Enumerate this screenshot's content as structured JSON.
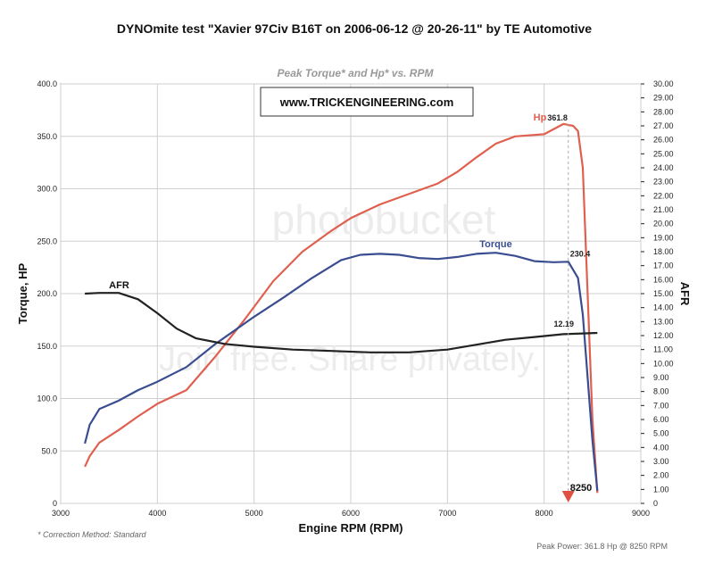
{
  "chart_data": {
    "type": "line",
    "title": "DYNOmite test \"Xavier 97Civ B16T on 2006-06-12 @ 20-26-11\" by TE Automotive",
    "subtitle": "Peak Torque* and Hp* vs. RPM",
    "banner": "www.TRICKENGINEERING.com",
    "xlabel": "Engine RPM (RPM)",
    "ylabel": "Torque, HP",
    "y2label": "AFR",
    "xlim": [
      3000,
      9000
    ],
    "ylim": [
      0,
      400
    ],
    "y2lim": [
      0,
      30
    ],
    "x_ticks": [
      "3000",
      "4000",
      "5000",
      "6000",
      "7000",
      "8000",
      "9000"
    ],
    "y_ticks": [
      "0",
      "50.0",
      "100.0",
      "150.0",
      "200.0",
      "250.0",
      "300.0",
      "350.0",
      "400.0"
    ],
    "y2_ticks": [
      "0",
      "1.00",
      "2.00",
      "3.00",
      "4.00",
      "5.00",
      "6.00",
      "7.00",
      "8.00",
      "9.00",
      "10.00",
      "11.00",
      "12.00",
      "13.00",
      "14.00",
      "15.00",
      "16.00",
      "17.00",
      "18.00",
      "19.00",
      "20.00",
      "21.00",
      "22.00",
      "23.00",
      "24.00",
      "25.00",
      "26.00",
      "27.00",
      "28.00",
      "29.00",
      "30.00"
    ],
    "grid": true,
    "series": [
      {
        "name": "Hp",
        "axis": "left",
        "color": "#e06050",
        "x": [
          3250,
          3300,
          3400,
          3600,
          3800,
          4000,
          4300,
          4600,
          4900,
          5200,
          5500,
          5800,
          6000,
          6300,
          6600,
          6900,
          7100,
          7300,
          7500,
          7700,
          8000,
          8200,
          8300,
          8350,
          8400,
          8450,
          8500,
          8550
        ],
        "y": [
          35,
          45,
          58,
          70,
          83,
          95,
          108,
          140,
          175,
          212,
          240,
          260,
          272,
          285,
          295,
          305,
          316,
          330,
          343,
          350,
          352,
          361.8,
          360,
          355,
          320,
          200,
          80,
          10
        ]
      },
      {
        "name": "Torque",
        "axis": "left",
        "color": "#3a4d90",
        "x": [
          3250,
          3300,
          3400,
          3600,
          3800,
          4000,
          4300,
          4600,
          5000,
          5300,
          5600,
          5900,
          6100,
          6300,
          6500,
          6700,
          6900,
          7100,
          7300,
          7500,
          7700,
          7900,
          8100,
          8250,
          8350,
          8400,
          8450,
          8500,
          8550
        ],
        "y": [
          57,
          75,
          90,
          98,
          108,
          116,
          130,
          152,
          178,
          196,
          215,
          232,
          237,
          238,
          237,
          234,
          233,
          235,
          238,
          239,
          236,
          231,
          230,
          230.4,
          215,
          180,
          120,
          60,
          12
        ]
      },
      {
        "name": "AFR",
        "axis": "right",
        "color": "#222222",
        "x": [
          3250,
          3400,
          3600,
          3800,
          4000,
          4200,
          4400,
          4700,
          5000,
          5400,
          5800,
          6200,
          6600,
          7000,
          7300,
          7600,
          7900,
          8200,
          8400,
          8550
        ],
        "y": [
          15.0,
          15.05,
          15.05,
          14.6,
          13.6,
          12.5,
          11.8,
          11.4,
          11.2,
          11.0,
          10.9,
          10.8,
          10.8,
          11.0,
          11.35,
          11.7,
          11.9,
          12.1,
          12.15,
          12.19
        ]
      }
    ],
    "annotations": {
      "hp_label": "Hp",
      "hp_peak": "361.8",
      "torque_label": "Torque",
      "torque_end": "230.4",
      "afr_label": "AFR",
      "afr_end": "12.19",
      "peak_rpm": "8250",
      "peak_rpm_value": 8250
    },
    "watermark": [
      "photobucket",
      "Join free. Share privately."
    ]
  },
  "footer": {
    "correction": "* Correction Method: Standard",
    "peak_power": "Peak Power: 361.8 Hp @ 8250 RPM"
  }
}
